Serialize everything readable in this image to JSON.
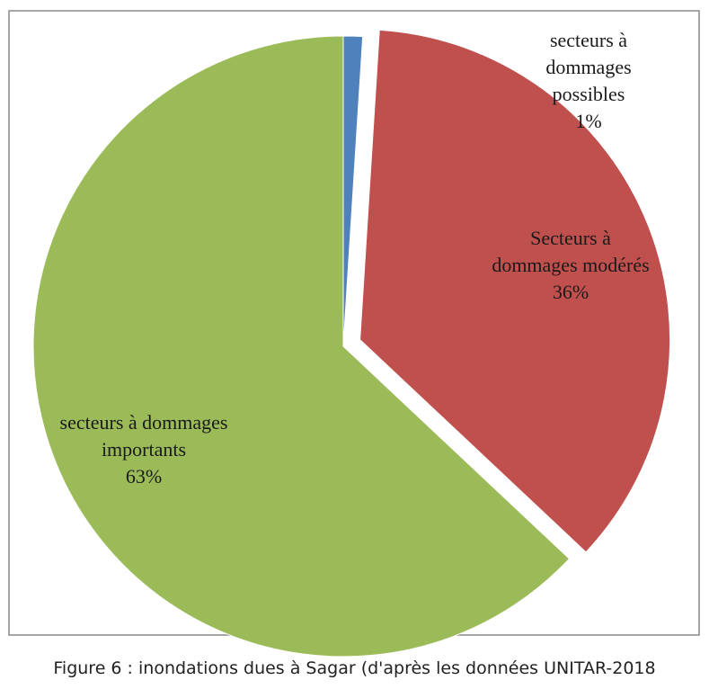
{
  "chart_data": {
    "type": "pie",
    "categories": [
      "secteurs à dommages possibles",
      "Secteurs à dommages modérés",
      "secteurs à dommages importants"
    ],
    "values": [
      1,
      36,
      63
    ],
    "value_labels": [
      "1%",
      "36%",
      "63%"
    ],
    "colors": [
      "#4f81bd",
      "#c0504d",
      "#9bbb59"
    ],
    "exploded": [
      false,
      true,
      false
    ]
  },
  "caption": "Figure 6 : inondations dues à Sagar (d'après les données UNITAR-2018"
}
